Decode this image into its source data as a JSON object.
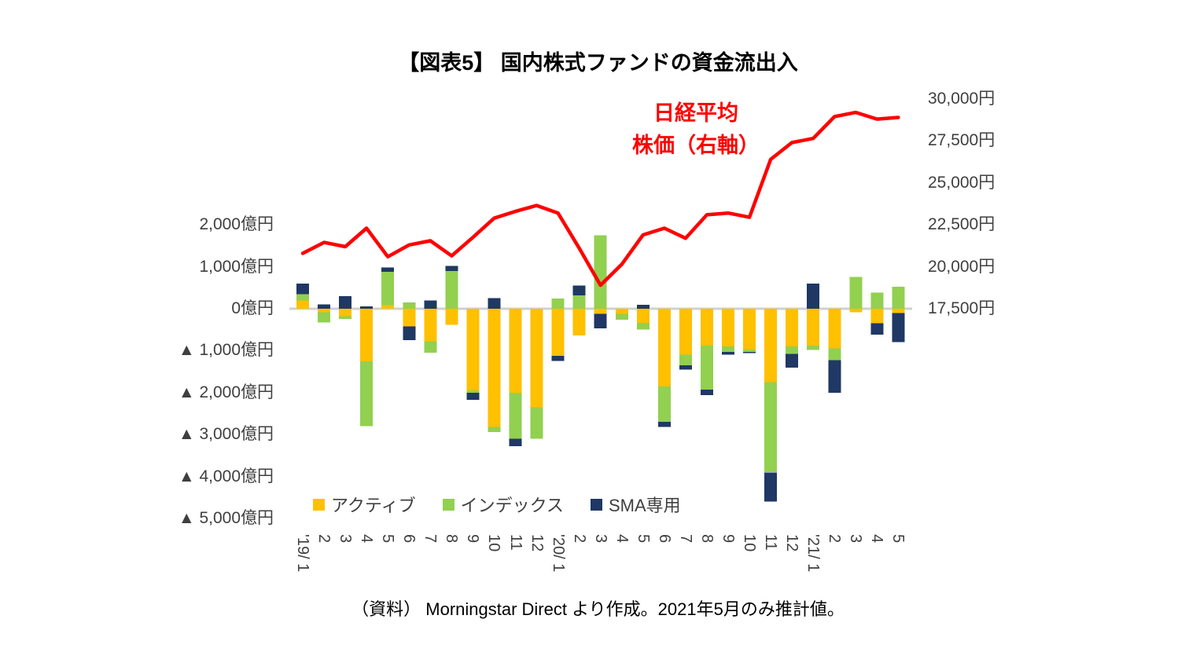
{
  "title": "【図表5】 国内株式ファンドの資金流出入",
  "annotation": {
    "line1": "日経平均",
    "line2": "株価（右軸）"
  },
  "source": "（資料） Morningstar Direct より作成。2021年5月のみ推計値。",
  "colors": {
    "active": "#FFC000",
    "index": "#92D050",
    "sma": "#1F3864",
    "nikkei_line": "#FF0000",
    "zero_line": "#D0D0D0",
    "axis_text": "#3F3F3F"
  },
  "chart_data": {
    "type": "combo",
    "bar_type": "stacked-bar",
    "line_type": "line",
    "bar_unit": "億円",
    "line_unit": "円",
    "categories": [
      "'19/ 1",
      "2",
      "3",
      "4",
      "5",
      "6",
      "7",
      "8",
      "9",
      "10",
      "11",
      "12",
      "'20/ 1",
      "2",
      "3",
      "4",
      "5",
      "6",
      "7",
      "8",
      "9",
      "10",
      "11",
      "12",
      "'21/ 1",
      "2",
      "3",
      "4",
      "5"
    ],
    "series": [
      {
        "name": "アクティブ",
        "color": "#FFC000",
        "values": [
          200,
          -80,
          -180,
          -1250,
          80,
          -420,
          -780,
          -380,
          -1950,
          -2820,
          -2000,
          -2350,
          -1120,
          -640,
          -120,
          -120,
          -340,
          -1850,
          -1100,
          -880,
          -900,
          -970,
          -1750,
          -900,
          -880,
          -950,
          -80,
          -350,
          -100
        ]
      },
      {
        "name": "インデックス",
        "color": "#92D050",
        "values": [
          150,
          -250,
          -60,
          -1550,
          800,
          150,
          -270,
          900,
          -50,
          -120,
          -1100,
          -750,
          240,
          320,
          1750,
          -140,
          -160,
          -850,
          -250,
          -1050,
          -130,
          -60,
          -2150,
          -180,
          -100,
          -280,
          760,
          380,
          520
        ]
      },
      {
        "name": "SMA専用",
        "color": "#1F3864",
        "values": [
          250,
          100,
          300,
          60,
          100,
          -330,
          200,
          120,
          -170,
          250,
          -180,
          0,
          -130,
          230,
          -350,
          0,
          90,
          -120,
          -100,
          -130,
          -70,
          -30,
          -700,
          -320,
          600,
          -770,
          0,
          -270,
          -700
        ]
      }
    ],
    "line": {
      "name": "日経平均株価（右軸）",
      "color": "#FF0000",
      "values": [
        20800,
        21450,
        21200,
        22300,
        20600,
        21300,
        21550,
        20650,
        21750,
        22900,
        23300,
        23650,
        23200,
        21100,
        18900,
        20150,
        21900,
        22300,
        21700,
        23100,
        23200,
        22950,
        26400,
        27400,
        27650,
        28950,
        29200,
        28800,
        28900
      ]
    },
    "left_axis": {
      "ticks": [
        "2,000億円",
        "1,000億円",
        "0億円",
        "▲ 1,000億円",
        "▲ 2,000億円",
        "▲ 3,000億円",
        "▲ 4,000億円",
        "▲ 5,000億円"
      ],
      "tick_values": [
        2000,
        1000,
        0,
        -1000,
        -2000,
        -3000,
        -4000,
        -5000
      ],
      "max": 2000,
      "min": -5000
    },
    "right_axis": {
      "ticks": [
        "30,000円",
        "27,500円",
        "25,000円",
        "22,500円",
        "20,000円",
        "17,500円"
      ],
      "tick_values": [
        30000,
        27500,
        25000,
        22500,
        20000,
        17500
      ],
      "max": 30000,
      "min": 17500
    },
    "grid": "zero-line-only",
    "legend_position": "inside-bottom-left"
  }
}
